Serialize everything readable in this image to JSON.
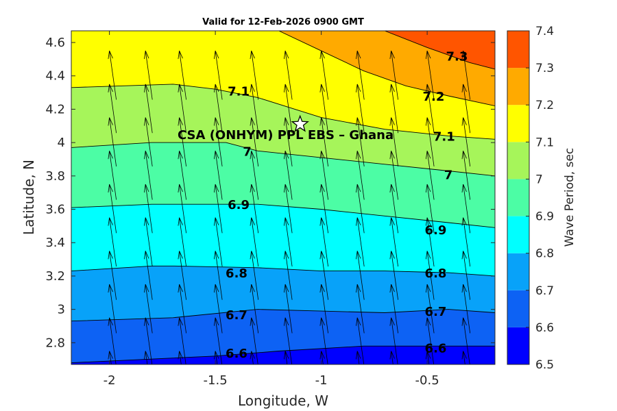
{
  "chart_data": {
    "type": "filled-contour",
    "title": "Valid for 12-Feb-2026 0900 GMT",
    "xlabel": "Longitude, W",
    "ylabel": "Latitude, N",
    "xlim": [
      -2.18,
      -0.18
    ],
    "ylim": [
      2.67,
      4.67
    ],
    "x_ticks": [
      -2,
      -1.5,
      -1,
      -0.5
    ],
    "x_tick_labels": [
      "-2",
      "-1.5",
      "-1",
      "-0.5"
    ],
    "y_ticks": [
      2.8,
      3,
      3.2,
      3.4,
      3.6,
      3.8,
      4,
      4.2,
      4.4,
      4.6
    ],
    "y_tick_labels": [
      "2.8",
      "3",
      "3.2",
      "3.4",
      "3.6",
      "3.8",
      "4",
      "4.2",
      "4.4",
      "4.6"
    ],
    "colorbar": {
      "label": "Wave Period, sec",
      "levels": [
        6.5,
        6.6,
        6.7,
        6.8,
        6.9,
        7.0,
        7.1,
        7.2,
        7.3,
        7.4
      ],
      "tick_labels": [
        "6.5",
        "6.6",
        "6.7",
        "6.8",
        "6.9",
        "7",
        "7.1",
        "7.2",
        "7.3",
        "7.4"
      ],
      "colors": [
        "#0000ff",
        "#0d62f4",
        "#08a2f9",
        "#00ffff",
        "#4cfda5",
        "#a6f55a",
        "#ffff00",
        "#ffaa00",
        "#ff5500"
      ]
    },
    "contour_lines": [
      {
        "level": "6.6",
        "points": [
          [
            -2.18,
            2.68
          ],
          [
            -1.5,
            2.72
          ],
          [
            -1.2,
            2.75
          ],
          [
            -0.8,
            2.78
          ],
          [
            -0.18,
            2.78
          ]
        ]
      },
      {
        "level": "6.7",
        "points": [
          [
            -2.18,
            2.93
          ],
          [
            -1.7,
            2.95
          ],
          [
            -1.3,
            3.0
          ],
          [
            -1.0,
            2.99
          ],
          [
            -0.7,
            2.98
          ],
          [
            -0.4,
            3.0
          ],
          [
            -0.18,
            2.98
          ]
        ]
      },
      {
        "level": "6.8",
        "points": [
          [
            -2.18,
            3.23
          ],
          [
            -1.8,
            3.26
          ],
          [
            -1.7,
            3.26
          ],
          [
            -1.3,
            3.25
          ],
          [
            -1.0,
            3.23
          ],
          [
            -0.7,
            3.23
          ],
          [
            -0.4,
            3.22
          ],
          [
            -0.18,
            3.2
          ]
        ]
      },
      {
        "level": "6.9",
        "points": [
          [
            -2.18,
            3.61
          ],
          [
            -1.8,
            3.63
          ],
          [
            -1.3,
            3.63
          ],
          [
            -1.0,
            3.6
          ],
          [
            -0.7,
            3.56
          ],
          [
            -0.4,
            3.52
          ],
          [
            -0.18,
            3.49
          ]
        ]
      },
      {
        "level": "7",
        "points": [
          [
            -2.18,
            3.97
          ],
          [
            -1.8,
            4.0
          ],
          [
            -1.45,
            4.0
          ],
          [
            -1.3,
            3.95
          ],
          [
            -1.0,
            3.91
          ],
          [
            -0.7,
            3.87
          ],
          [
            -0.4,
            3.83
          ],
          [
            -0.18,
            3.8
          ]
        ]
      },
      {
        "level": "7.1",
        "points": [
          [
            -2.18,
            4.33
          ],
          [
            -1.7,
            4.35
          ],
          [
            -1.5,
            4.32
          ],
          [
            -1.3,
            4.27
          ],
          [
            -1.0,
            4.15
          ],
          [
            -0.7,
            4.08
          ],
          [
            -0.4,
            4.04
          ],
          [
            -0.18,
            4.02
          ]
        ]
      },
      {
        "level": "7.2",
        "points": [
          [
            -1.2,
            4.67
          ],
          [
            -1.0,
            4.55
          ],
          [
            -0.8,
            4.43
          ],
          [
            -0.6,
            4.34
          ],
          [
            -0.4,
            4.28
          ],
          [
            -0.18,
            4.22
          ]
        ]
      },
      {
        "level": "7.3",
        "points": [
          [
            -0.7,
            4.67
          ],
          [
            -0.5,
            4.57
          ],
          [
            -0.3,
            4.48
          ],
          [
            -0.18,
            4.44
          ]
        ]
      }
    ],
    "contour_labels": [
      {
        "text": "7.3",
        "x": -0.36,
        "y": 4.52
      },
      {
        "text": "7.2",
        "x": -0.47,
        "y": 4.28
      },
      {
        "text": "7.1",
        "x": -1.39,
        "y": 4.31
      },
      {
        "text": "7.1",
        "x": -0.42,
        "y": 4.04
      },
      {
        "text": "7",
        "x": -1.35,
        "y": 3.95
      },
      {
        "text": "7",
        "x": -0.4,
        "y": 3.81
      },
      {
        "text": "6.9",
        "x": -1.39,
        "y": 3.63
      },
      {
        "text": "6.9",
        "x": -0.46,
        "y": 3.48
      },
      {
        "text": "6.8",
        "x": -1.4,
        "y": 3.22
      },
      {
        "text": "6.8",
        "x": -0.46,
        "y": 3.22
      },
      {
        "text": "6.7",
        "x": -1.4,
        "y": 2.97
      },
      {
        "text": "6.7",
        "x": -0.46,
        "y": 2.99
      },
      {
        "text": "6.6",
        "x": -1.4,
        "y": 2.74
      },
      {
        "text": "6.6",
        "x": -0.46,
        "y": 2.77
      }
    ],
    "site": {
      "label": "CSA (ONHYM) PPL EBS  – Ghana",
      "x": -1.1,
      "y": 4.11,
      "marker": "star"
    },
    "wave_direction_arrows": {
      "x": [
        -2.0,
        -1.83,
        -1.67,
        -1.5,
        -1.33,
        -1.17,
        -1.0,
        -0.83,
        -0.67,
        -0.5,
        -0.33
      ],
      "y": [
        2.75,
        2.95,
        3.15,
        3.35,
        3.55,
        3.75,
        3.95,
        4.15,
        4.35,
        4.55
      ],
      "direction": "toward north-northwest"
    }
  }
}
